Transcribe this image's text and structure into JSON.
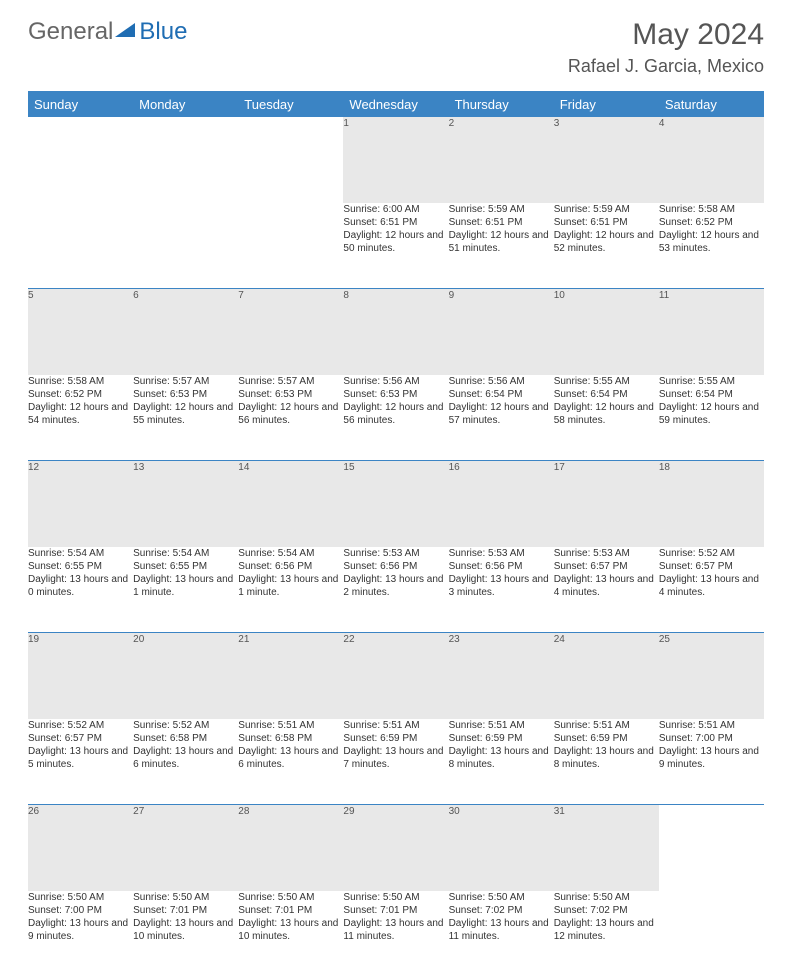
{
  "logo": {
    "part1": "General",
    "part2": "Blue"
  },
  "title": "May 2024",
  "location": "Rafael J. Garcia, Mexico",
  "colors": {
    "header_bg": "#3b84c4",
    "header_fg": "#ffffff",
    "daynum_bg": "#e8e8e8",
    "daynum_fg": "#555555",
    "text": "#333333",
    "logo_gray": "#666666",
    "logo_blue": "#1f6db3"
  },
  "weekdays": [
    "Sunday",
    "Monday",
    "Tuesday",
    "Wednesday",
    "Thursday",
    "Friday",
    "Saturday"
  ],
  "weeks": [
    [
      null,
      null,
      null,
      {
        "n": "1",
        "sr": "6:00 AM",
        "ss": "6:51 PM",
        "dl": "12 hours and 50 minutes."
      },
      {
        "n": "2",
        "sr": "5:59 AM",
        "ss": "6:51 PM",
        "dl": "12 hours and 51 minutes."
      },
      {
        "n": "3",
        "sr": "5:59 AM",
        "ss": "6:51 PM",
        "dl": "12 hours and 52 minutes."
      },
      {
        "n": "4",
        "sr": "5:58 AM",
        "ss": "6:52 PM",
        "dl": "12 hours and 53 minutes."
      }
    ],
    [
      {
        "n": "5",
        "sr": "5:58 AM",
        "ss": "6:52 PM",
        "dl": "12 hours and 54 minutes."
      },
      {
        "n": "6",
        "sr": "5:57 AM",
        "ss": "6:53 PM",
        "dl": "12 hours and 55 minutes."
      },
      {
        "n": "7",
        "sr": "5:57 AM",
        "ss": "6:53 PM",
        "dl": "12 hours and 56 minutes."
      },
      {
        "n": "8",
        "sr": "5:56 AM",
        "ss": "6:53 PM",
        "dl": "12 hours and 56 minutes."
      },
      {
        "n": "9",
        "sr": "5:56 AM",
        "ss": "6:54 PM",
        "dl": "12 hours and 57 minutes."
      },
      {
        "n": "10",
        "sr": "5:55 AM",
        "ss": "6:54 PM",
        "dl": "12 hours and 58 minutes."
      },
      {
        "n": "11",
        "sr": "5:55 AM",
        "ss": "6:54 PM",
        "dl": "12 hours and 59 minutes."
      }
    ],
    [
      {
        "n": "12",
        "sr": "5:54 AM",
        "ss": "6:55 PM",
        "dl": "13 hours and 0 minutes."
      },
      {
        "n": "13",
        "sr": "5:54 AM",
        "ss": "6:55 PM",
        "dl": "13 hours and 1 minute."
      },
      {
        "n": "14",
        "sr": "5:54 AM",
        "ss": "6:56 PM",
        "dl": "13 hours and 1 minute."
      },
      {
        "n": "15",
        "sr": "5:53 AM",
        "ss": "6:56 PM",
        "dl": "13 hours and 2 minutes."
      },
      {
        "n": "16",
        "sr": "5:53 AM",
        "ss": "6:56 PM",
        "dl": "13 hours and 3 minutes."
      },
      {
        "n": "17",
        "sr": "5:53 AM",
        "ss": "6:57 PM",
        "dl": "13 hours and 4 minutes."
      },
      {
        "n": "18",
        "sr": "5:52 AM",
        "ss": "6:57 PM",
        "dl": "13 hours and 4 minutes."
      }
    ],
    [
      {
        "n": "19",
        "sr": "5:52 AM",
        "ss": "6:57 PM",
        "dl": "13 hours and 5 minutes."
      },
      {
        "n": "20",
        "sr": "5:52 AM",
        "ss": "6:58 PM",
        "dl": "13 hours and 6 minutes."
      },
      {
        "n": "21",
        "sr": "5:51 AM",
        "ss": "6:58 PM",
        "dl": "13 hours and 6 minutes."
      },
      {
        "n": "22",
        "sr": "5:51 AM",
        "ss": "6:59 PM",
        "dl": "13 hours and 7 minutes."
      },
      {
        "n": "23",
        "sr": "5:51 AM",
        "ss": "6:59 PM",
        "dl": "13 hours and 8 minutes."
      },
      {
        "n": "24",
        "sr": "5:51 AM",
        "ss": "6:59 PM",
        "dl": "13 hours and 8 minutes."
      },
      {
        "n": "25",
        "sr": "5:51 AM",
        "ss": "7:00 PM",
        "dl": "13 hours and 9 minutes."
      }
    ],
    [
      {
        "n": "26",
        "sr": "5:50 AM",
        "ss": "7:00 PM",
        "dl": "13 hours and 9 minutes."
      },
      {
        "n": "27",
        "sr": "5:50 AM",
        "ss": "7:01 PM",
        "dl": "13 hours and 10 minutes."
      },
      {
        "n": "28",
        "sr": "5:50 AM",
        "ss": "7:01 PM",
        "dl": "13 hours and 10 minutes."
      },
      {
        "n": "29",
        "sr": "5:50 AM",
        "ss": "7:01 PM",
        "dl": "13 hours and 11 minutes."
      },
      {
        "n": "30",
        "sr": "5:50 AM",
        "ss": "7:02 PM",
        "dl": "13 hours and 11 minutes."
      },
      {
        "n": "31",
        "sr": "5:50 AM",
        "ss": "7:02 PM",
        "dl": "13 hours and 12 minutes."
      },
      null
    ]
  ],
  "labels": {
    "sunrise": "Sunrise:",
    "sunset": "Sunset:",
    "daylight": "Daylight:"
  }
}
